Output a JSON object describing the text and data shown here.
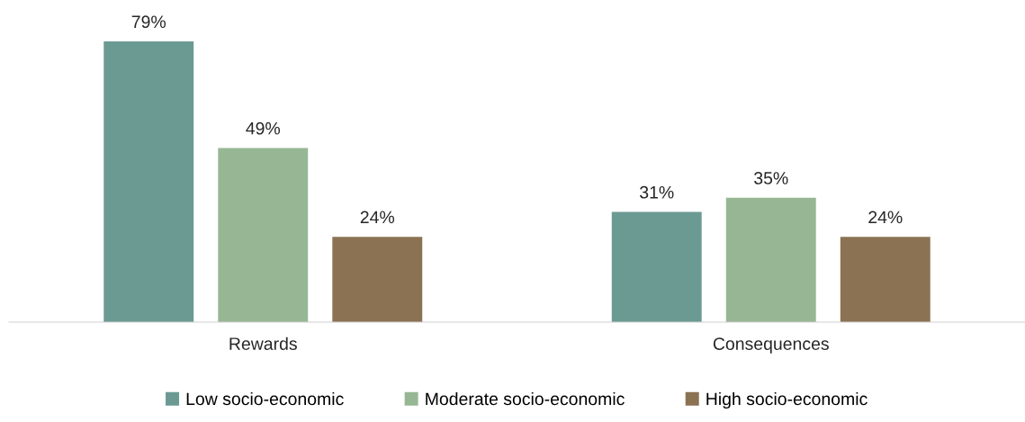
{
  "chart_data": {
    "type": "bar",
    "categories": [
      "Rewards",
      "Consequences"
    ],
    "series": [
      {
        "name": "Low socio-economic",
        "color": "#6b9a93",
        "values": [
          79,
          31
        ],
        "value_labels": [
          "79%",
          "31%"
        ]
      },
      {
        "name": "Moderate socio-economic",
        "color": "#97b794",
        "values": [
          49,
          35
        ],
        "value_labels": [
          "49%",
          "35%"
        ]
      },
      {
        "name": "High socio-economic",
        "color": "#8a7253",
        "values": [
          24,
          24
        ],
        "value_labels": [
          "24%",
          "24%"
        ]
      }
    ],
    "tick_labels": "x",
    "legend": "bottom",
    "grid": false
  }
}
